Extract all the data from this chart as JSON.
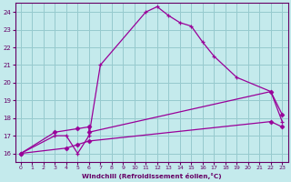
{
  "background_color": "#c4eaec",
  "grid_color": "#96cace",
  "line_color": "#990099",
  "xlim": [
    -0.5,
    23.5
  ],
  "ylim": [
    15.5,
    24.5
  ],
  "xticks": [
    0,
    1,
    2,
    3,
    4,
    5,
    6,
    7,
    8,
    9,
    10,
    11,
    12,
    13,
    14,
    15,
    16,
    17,
    18,
    19,
    20,
    21,
    22,
    23
  ],
  "yticks": [
    16,
    17,
    18,
    19,
    20,
    21,
    22,
    23,
    24
  ],
  "xlabel": "Windchill (Refroidissement éolien,°C)",
  "line1_x": [
    0,
    3,
    4,
    5,
    6,
    7,
    11,
    12,
    13,
    14,
    15,
    16,
    17,
    19,
    22,
    23
  ],
  "line1_y": [
    16,
    17,
    17,
    16,
    17,
    21,
    24,
    24.3,
    23.8,
    23.4,
    23.2,
    22.3,
    21.5,
    20.3,
    19.5,
    17.8
  ],
  "line2_x": [
    0,
    3,
    5,
    6,
    6,
    22,
    23
  ],
  "line2_y": [
    16,
    17.2,
    17.4,
    17.5,
    17.2,
    19.5,
    18.2
  ],
  "line3_x": [
    0,
    4,
    5,
    6,
    22,
    23
  ],
  "line3_y": [
    16,
    16.3,
    16.5,
    16.7,
    17.8,
    17.5
  ],
  "line2_markers_x": [
    0,
    3,
    5,
    6,
    22,
    23
  ],
  "line2_markers_y": [
    16,
    17.2,
    17.4,
    17.5,
    19.5,
    18.2
  ],
  "line3_markers_x": [
    0,
    4,
    5,
    6,
    22,
    23
  ],
  "line3_markers_y": [
    16,
    16.3,
    16.5,
    16.7,
    17.8,
    17.5
  ]
}
